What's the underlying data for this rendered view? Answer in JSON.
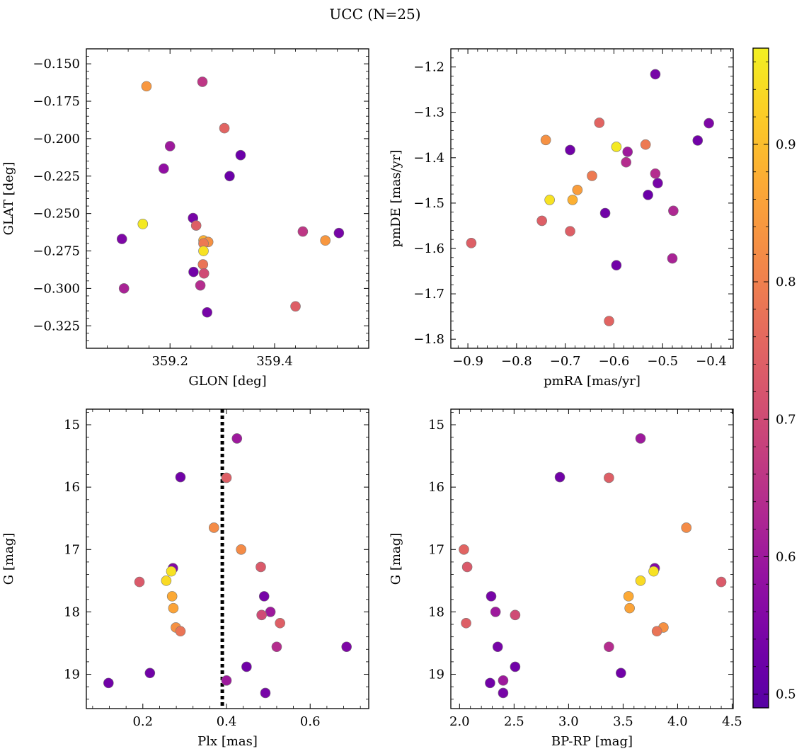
{
  "title": "UCC (N=25)",
  "colorbar": {
    "ticks": [
      0.5,
      0.6,
      0.7,
      0.8,
      0.9
    ],
    "range": [
      0.49,
      0.97
    ],
    "colormap": "plasma",
    "tick_labels": [
      "0.5",
      "0.6",
      "0.7",
      "0.8",
      "0.9"
    ]
  },
  "chart_data": [
    {
      "type": "scatter",
      "xlabel": "GLON [deg]",
      "ylabel": "GLAT [deg]",
      "xlim": [
        359.04,
        359.58
      ],
      "ylim": [
        -0.34,
        -0.14
      ],
      "xticks": [
        359.2,
        359.4
      ],
      "xtick_labels": [
        "359.2",
        "359.4"
      ],
      "yticks": [
        -0.325,
        -0.3,
        -0.275,
        -0.25,
        -0.225,
        -0.2,
        -0.175,
        -0.15
      ],
      "ytick_labels": [
        "−0.325",
        "−0.300",
        "−0.275",
        "−0.250",
        "−0.225",
        "−0.200",
        "−0.175",
        "−0.150"
      ],
      "x": [
        359.155,
        359.262,
        359.304,
        359.2,
        359.335,
        359.188,
        359.314,
        359.244,
        359.148,
        359.25,
        359.108,
        359.264,
        359.273,
        359.264,
        359.264,
        359.454,
        359.497,
        359.523,
        359.263,
        359.245,
        359.265,
        359.112,
        359.258,
        359.44,
        359.271
      ],
      "y": [
        -0.165,
        -0.162,
        -0.193,
        -0.205,
        -0.211,
        -0.22,
        -0.225,
        -0.253,
        -0.257,
        -0.258,
        -0.267,
        -0.268,
        -0.269,
        -0.27,
        -0.275,
        -0.262,
        -0.268,
        -0.263,
        -0.284,
        -0.289,
        -0.29,
        -0.3,
        -0.298,
        -0.312,
        -0.316
      ],
      "color_values": [
        0.84,
        0.66,
        0.75,
        0.6,
        0.52,
        0.58,
        0.52,
        0.54,
        0.96,
        0.74,
        0.55,
        0.88,
        0.83,
        0.79,
        0.95,
        0.66,
        0.84,
        0.54,
        0.78,
        0.53,
        0.7,
        0.62,
        0.64,
        0.74,
        0.54
      ]
    },
    {
      "type": "scatter",
      "xlabel": "pmRA [mas/yr]",
      "ylabel": "pmDE [mas/yr]",
      "xlim": [
        -0.935,
        -0.355
      ],
      "ylim": [
        -1.82,
        -1.16
      ],
      "xticks": [
        -0.9,
        -0.8,
        -0.7,
        -0.6,
        -0.5,
        -0.4
      ],
      "xtick_labels": [
        "−0.9",
        "−0.8",
        "−0.7",
        "−0.6",
        "−0.5",
        "−0.4"
      ],
      "yticks": [
        -1.8,
        -1.7,
        -1.6,
        -1.5,
        -1.4,
        -1.3,
        -1.2
      ],
      "ytick_labels": [
        "−1.8",
        "−1.7",
        "−1.6",
        "−1.5",
        "−1.4",
        "−1.3",
        "−1.2"
      ],
      "x": [
        -0.515,
        -0.405,
        -0.63,
        -0.74,
        -0.428,
        -0.535,
        -0.595,
        -0.69,
        -0.572,
        -0.575,
        -0.645,
        -0.515,
        -0.51,
        -0.675,
        -0.53,
        -0.732,
        -0.685,
        -0.478,
        -0.618,
        -0.748,
        -0.69,
        -0.893,
        -0.48,
        -0.595,
        -0.61
      ],
      "y": [
        -1.216,
        -1.324,
        -1.323,
        -1.361,
        -1.362,
        -1.371,
        -1.376,
        -1.383,
        -1.387,
        -1.41,
        -1.44,
        -1.435,
        -1.456,
        -1.471,
        -1.482,
        -1.493,
        -1.493,
        -1.517,
        -1.522,
        -1.539,
        -1.562,
        -1.588,
        -1.622,
        -1.637,
        -1.76
      ],
      "color_values": [
        0.54,
        0.55,
        0.75,
        0.83,
        0.53,
        0.79,
        0.96,
        0.53,
        0.6,
        0.64,
        0.79,
        0.64,
        0.54,
        0.85,
        0.52,
        0.95,
        0.88,
        0.63,
        0.53,
        0.74,
        0.74,
        0.74,
        0.62,
        0.53,
        0.75
      ]
    },
    {
      "type": "scatter",
      "xlabel": "Plx [mas]",
      "ylabel": "G [mag]",
      "xlim": [
        0.065,
        0.74
      ],
      "ylim": [
        19.55,
        14.75
      ],
      "xticks": [
        0.2,
        0.4,
        0.6
      ],
      "xtick_labels": [
        "0.2",
        "0.4",
        "0.6"
      ],
      "yticks": [
        15,
        16,
        17,
        18,
        19
      ],
      "ytick_labels": [
        "15",
        "16",
        "17",
        "18",
        "19"
      ],
      "vline": 0.39,
      "x": [
        0.425,
        0.29,
        0.4,
        0.37,
        0.435,
        0.272,
        0.482,
        0.192,
        0.256,
        0.27,
        0.49,
        0.273,
        0.505,
        0.484,
        0.528,
        0.279,
        0.29,
        0.52,
        0.687,
        0.448,
        0.217,
        0.118,
        0.4,
        0.493,
        0.268
      ],
      "y": [
        15.22,
        15.84,
        15.85,
        16.65,
        17.0,
        17.3,
        17.28,
        17.52,
        17.5,
        17.75,
        17.75,
        17.94,
        18.0,
        18.05,
        18.18,
        18.25,
        18.31,
        18.56,
        18.56,
        18.88,
        18.98,
        19.14,
        19.1,
        19.3,
        17.35
      ],
      "color_values": [
        0.6,
        0.53,
        0.74,
        0.82,
        0.82,
        0.56,
        0.73,
        0.73,
        0.94,
        0.87,
        0.54,
        0.86,
        0.6,
        0.7,
        0.74,
        0.83,
        0.78,
        0.64,
        0.55,
        0.53,
        0.53,
        0.53,
        0.6,
        0.54,
        0.95
      ]
    },
    {
      "type": "scatter",
      "xlabel": "BP-RP [mag]",
      "ylabel": "G [mag]",
      "xlim": [
        1.92,
        4.51
      ],
      "ylim": [
        19.55,
        14.75
      ],
      "xticks": [
        2.0,
        2.5,
        3.0,
        3.5,
        4.0,
        4.5
      ],
      "xtick_labels": [
        "2.0",
        "2.5",
        "3.0",
        "3.5",
        "4.0",
        "4.5"
      ],
      "yticks": [
        15,
        16,
        17,
        18,
        19
      ],
      "ytick_labels": [
        "15",
        "16",
        "17",
        "18",
        "19"
      ],
      "x": [
        3.66,
        2.92,
        3.37,
        4.08,
        2.04,
        2.07,
        3.79,
        3.78,
        4.4,
        3.66,
        2.29,
        3.55,
        2.33,
        3.56,
        2.51,
        2.06,
        3.87,
        3.81,
        2.35,
        3.37,
        2.51,
        3.48,
        2.28,
        2.4,
        2.4
      ],
      "y": [
        15.22,
        15.84,
        15.85,
        16.65,
        17.0,
        17.28,
        17.3,
        17.35,
        17.52,
        17.5,
        17.75,
        17.75,
        18.0,
        17.94,
        18.05,
        18.18,
        18.25,
        18.31,
        18.56,
        18.56,
        18.88,
        18.98,
        19.14,
        19.1,
        19.3
      ],
      "color_values": [
        0.6,
        0.53,
        0.74,
        0.82,
        0.75,
        0.73,
        0.56,
        0.95,
        0.73,
        0.94,
        0.54,
        0.87,
        0.6,
        0.86,
        0.7,
        0.74,
        0.83,
        0.78,
        0.54,
        0.64,
        0.53,
        0.53,
        0.53,
        0.6,
        0.54
      ]
    }
  ]
}
